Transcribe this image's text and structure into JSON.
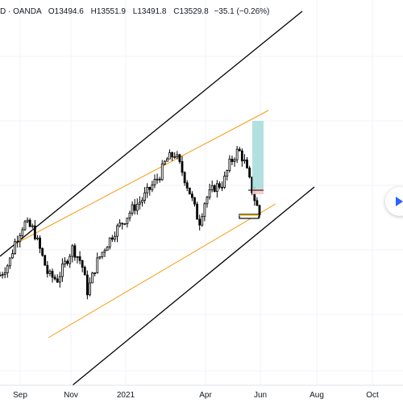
{
  "legend": {
    "symbol": "D · OANDA",
    "open": "O13494.6",
    "high": "H13551.9",
    "low": "L13491.8",
    "close": "C13529.8",
    "change": "−35.1 (−0.26%)"
  },
  "colors": {
    "background": "#ffffff",
    "grid": "#f0f3fa",
    "candle": "#000000",
    "channel_outer": "#000000",
    "channel_inner": "#f39c12",
    "target_box": "#9fd8d8",
    "stop_box": "#f7c9c9",
    "accent": "#2962ff"
  },
  "navigation": {
    "icon": "chevron-right-icon"
  },
  "chart_data": {
    "type": "candlestick",
    "x_tick_labels": [
      "Sep",
      "Nov",
      "2021",
      "Apr",
      "Jun",
      "Aug",
      "Oct"
    ],
    "grid": true,
    "series": [
      {
        "values": [
          [
            2020.58,
            0.34
          ],
          [
            2020.61,
            0.4
          ],
          [
            2020.63,
            0.5
          ],
          [
            2020.66,
            0.59
          ],
          [
            2020.69,
            0.56
          ],
          [
            2020.72,
            0.43
          ],
          [
            2020.74,
            0.34
          ],
          [
            2020.77,
            0.32
          ],
          [
            2020.79,
            0.38
          ],
          [
            2020.82,
            0.47
          ],
          [
            2020.85,
            0.4
          ],
          [
            2020.87,
            0.26
          ],
          [
            2020.9,
            0.4
          ],
          [
            2020.93,
            0.48
          ],
          [
            2020.96,
            0.55
          ],
          [
            2020.99,
            0.6
          ],
          [
            2021.02,
            0.66
          ],
          [
            2021.05,
            0.7
          ],
          [
            2021.08,
            0.76
          ],
          [
            2021.11,
            0.82
          ],
          [
            2021.13,
            0.89
          ],
          [
            2021.16,
            0.92
          ],
          [
            2021.18,
            0.85
          ],
          [
            2021.21,
            0.73
          ],
          [
            2021.24,
            0.59
          ],
          [
            2021.26,
            0.7
          ],
          [
            2021.29,
            0.76
          ],
          [
            2021.32,
            0.78
          ],
          [
            2021.34,
            0.87
          ],
          [
            2021.37,
            0.94
          ],
          [
            2021.39,
            0.88
          ],
          [
            2021.42,
            0.72
          ],
          [
            2021.44,
            0.63
          ]
        ]
      }
    ]
  }
}
